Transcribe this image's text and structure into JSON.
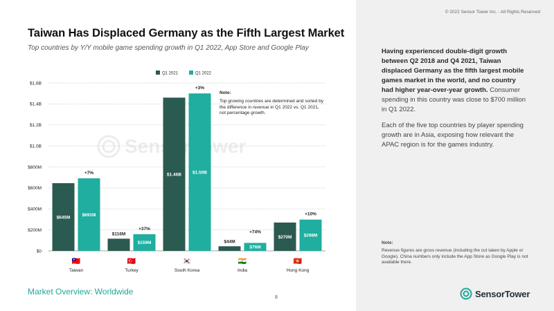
{
  "copyright": "© 2022 Sensor Tower Inc. - All Rights Reserved",
  "title": "Taiwan Has Displaced Germany as the Fifth Largest Market",
  "subtitle": "Top countries by Y/Y mobile game spending growth in Q1 2022, App Store and Google Play",
  "note": {
    "heading": "Note:",
    "text": "Top growing countries are determined and sorted by the difference in revenue in Q1 2022 vs. Q1 2021, not percentage growth."
  },
  "description": {
    "bold1": "Having experienced double-digit growth between Q2 2018 and Q4 2021, Taiwan displaced Germany as the fifth largest mobile games market in the world, and no country had higher year-over-year growth.",
    "rest1": " Consumer spending in this country was close to $700 million in Q1 2022.",
    "para2": "Each of the five top countries by player spending growth are in Asia, exposing how relevant the APAC region is for the games industry."
  },
  "footnote": {
    "heading": "Note:",
    "text": "Revenue figures are gross revenue (including the cut taken by Apple or Google). China numbers only include the App Store as Google Play is not available there."
  },
  "footer": "Market Overview: Worldwide",
  "page_number": "8",
  "logo_text": "SensorTower",
  "watermark_text": "SensorTower",
  "colors": {
    "q1_2021": "#2b5a50",
    "q1_2022": "#1fae9f",
    "accent": "#1ea89a"
  },
  "chart_data": {
    "type": "bar",
    "title": "Taiwan Has Displaced Germany as the Fifth Largest Market",
    "xlabel": "",
    "ylabel": "",
    "ylim": [
      0,
      1.6
    ],
    "yticks": [
      {
        "value": 0,
        "label": "$0"
      },
      {
        "value": 0.2,
        "label": "$200M"
      },
      {
        "value": 0.4,
        "label": "$400M"
      },
      {
        "value": 0.6,
        "label": "$600M"
      },
      {
        "value": 0.8,
        "label": "$800M"
      },
      {
        "value": 1.0,
        "label": "$1.0B"
      },
      {
        "value": 1.2,
        "label": "$1.2B"
      },
      {
        "value": 1.4,
        "label": "$1.4B"
      },
      {
        "value": 1.6,
        "label": "$1.6B"
      }
    ],
    "categories": [
      "Taiwan",
      "Turkey",
      "South Korea",
      "India",
      "Hong Kong"
    ],
    "flags": [
      "🇹🇼",
      "🇹🇷",
      "🇰🇷",
      "🇮🇳",
      "🇭🇰"
    ],
    "legend": [
      "Q1 2021",
      "Q1 2022"
    ],
    "series": [
      {
        "name": "Q1 2021",
        "values": [
          0.645,
          0.116,
          1.46,
          0.044,
          0.27
        ],
        "labels": [
          "$645M",
          "$116M",
          "$1.46B",
          "$44M",
          "$270M"
        ]
      },
      {
        "name": "Q1 2022",
        "values": [
          0.691,
          0.159,
          1.5,
          0.076,
          0.298
        ],
        "labels": [
          "$691M",
          "$159M",
          "$1.50B",
          "$76M",
          "$298M"
        ]
      }
    ],
    "growth": [
      "+7%",
      "+37%",
      "+3%",
      "+74%",
      "+10%"
    ],
    "grid": true,
    "legend_position": "top"
  }
}
